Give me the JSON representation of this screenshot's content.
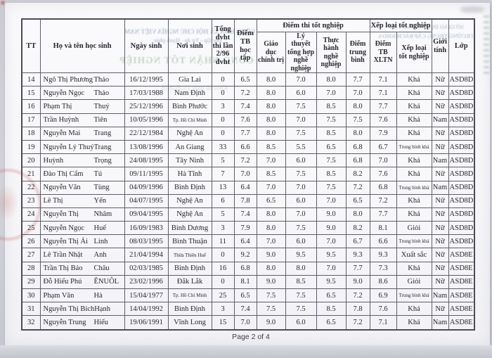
{
  "page": {
    "footer": "Page 2 of 4"
  },
  "colors": {
    "ink": "#26262e",
    "table_line": "#5e5e68",
    "paper": "#f8f8fb",
    "scanner_background": "#d2d3da",
    "stamp_red": "#c1493e",
    "bleed_blue": "#6a8ca6",
    "bleed_green": "#80a876"
  },
  "bleedthrough": {
    "line1": "CỘNG HÒA XÃ HỘI CHỦ NGHĨA VIỆT NAM",
    "line2": "Độc lập - Tự do - Hạnh phúc",
    "line3": "CÔNG NHẬN TỐT NGHIỆP",
    "line4": "SỞ GIÁO DỤC VÀ ĐÀO TẠO",
    "line5": "TRƯỜNG TRUNG CẤP BÁCH KHOA",
    "line6": "Khóa thi ngày 15/26/2016"
  },
  "table": {
    "headers": {
      "tt": "TT",
      "name": "Họ và tên học sinh",
      "dob": "Ngày sinh",
      "pob": "Nơi sinh",
      "credits": "Tổng đvht thi lần 2/96 đvht",
      "gpa": "Điểm TB học tập",
      "exam_group": "Điểm thi tốt nghiệp",
      "exam_politics": "Giáo dục chính trị",
      "exam_theory": "Lý thuyết tổng hợp nghề nghiệp",
      "exam_practice": "Thực hành nghề nghiệp",
      "exam_avg": "Điểm trung bình",
      "rank_group": "Xếp loại tốt nghiệp",
      "rank_avg": "Điểm TB XLTN",
      "rank_label": "Xếp loại tốt nghiệp",
      "gender": "Giới tính",
      "class": "Lớp"
    },
    "rows": [
      [
        "14",
        "Ngô Thị Phương",
        "Thảo",
        "16/12/1995",
        "Gia Lai",
        "0",
        "6.5",
        "8.0",
        "7.0",
        "8.0",
        "7.7",
        "7.1",
        "Khá",
        "Nữ",
        "ASD8D"
      ],
      [
        "15",
        "Nguyễn Ngọc",
        "Thảo",
        "17/03/1988",
        "Nam Định",
        "0",
        "7.2",
        "8.0",
        "6.0",
        "7.0",
        "7.0",
        "7.1",
        "Khá",
        "Nữ",
        "ASD8D"
      ],
      [
        "16",
        "Phạm Thị",
        "Thuý",
        "25/12/1996",
        "Bình Phước",
        "3",
        "7.4",
        "8.0",
        "7.5",
        "8.5",
        "8.0",
        "7.7",
        "Khá",
        "Nữ",
        "ASD8D"
      ],
      [
        "17",
        "Trần Huỳnh",
        "Tiên",
        "10/05/1996",
        "Tp. Hồ Chí Minh",
        "0",
        "7.6",
        "8.0",
        "7.0",
        "7.5",
        "7.5",
        "7.6",
        "Khá",
        "Nam",
        "ASD8D"
      ],
      [
        "18",
        "Nguyễn Mai",
        "Trang",
        "22/12/1984",
        "Nghệ An",
        "0",
        "7.7",
        "8.0",
        "7.5",
        "8.5",
        "8.0",
        "7.9",
        "Khá",
        "Nữ",
        "ASD8D"
      ],
      [
        "19",
        "Nguyễn Lý Thuỷ",
        "Trang",
        "13/08/1996",
        "An Giang",
        "33",
        "6.6",
        "8.5",
        "5.5",
        "6.5",
        "6.8",
        "6.7",
        "Trung bình khá",
        "Nữ",
        "ASD8D"
      ],
      [
        "20",
        "Huỳnh",
        "Trọng",
        "24/08/1995",
        "Tây Ninh",
        "5",
        "7.2",
        "7.0",
        "6.0",
        "7.5",
        "6.8",
        "7.0",
        "Khá",
        "Nam",
        "ASD8D"
      ],
      [
        "21",
        "Đào Thị Cẩm",
        "Tú",
        "09/11/1995",
        "Hà Tĩnh",
        "7",
        "7.0",
        "8.5",
        "7.5",
        "8.5",
        "8.2",
        "7.6",
        "Khá",
        "Nữ",
        "ASD8D"
      ],
      [
        "22",
        "Nguyễn Văn",
        "Tùng",
        "04/09/1996",
        "Bình Định",
        "13",
        "6.4",
        "7.0",
        "7.0",
        "7.5",
        "7.2",
        "6.8",
        "Trung bình khá",
        "Nam",
        "ASD8D"
      ],
      [
        "23",
        "Lê Thị",
        "Yến",
        "04/07/1995",
        "Nghệ An",
        "6",
        "7.8",
        "6.5",
        "6.0",
        "7.0",
        "6.5",
        "7.2",
        "Khá",
        "Nữ",
        "ASD8D"
      ],
      [
        "24",
        "Nguyễn Thị",
        "Nhâm",
        "09/04/1995",
        "Nghệ An",
        "5",
        "7.4",
        "8.0",
        "7.0",
        "9.0",
        "8.0",
        "7.7",
        "Khá",
        "Nữ",
        "ASD8D"
      ],
      [
        "25",
        "Nguyễn Ngọc",
        "Huế",
        "16/09/1983",
        "Bình Dương",
        "3",
        "7.9",
        "8.0",
        "7.5",
        "9.0",
        "8.2",
        "8.1",
        "Giỏi",
        "Nữ",
        "ASD8D"
      ],
      [
        "26",
        "Nguyễn Thị Ái",
        "Linh",
        "08/03/1995",
        "Bình Thuận",
        "11",
        "6.4",
        "7.0",
        "6.0",
        "7.0",
        "6.7",
        "6.6",
        "Trung bình khá",
        "Nữ",
        "ASD8D"
      ],
      [
        "27",
        "Lê Trần Nhật",
        "Anh",
        "21/04/1994",
        "Thừa Thiên Huế",
        "0",
        "9.2",
        "9.0",
        "9.5",
        "9.5",
        "9.3",
        "9.3",
        "Xuất sắc",
        "Nữ",
        "ASD8E"
      ],
      [
        "28",
        "Trần Thị Bảo",
        "Châu",
        "02/03/1985",
        "Bình Định",
        "16",
        "6.8",
        "8.0",
        "8.0",
        "7.0",
        "7.7",
        "7.3",
        "Khá",
        "Nữ",
        "ASD8E"
      ],
      [
        "29",
        "Đỗ Hiếu Phú",
        "ÊNUÔL",
        "23/02/1996",
        "Đắk Lắk",
        "0",
        "8.1",
        "9.0",
        "8.5",
        "9.5",
        "9.0",
        "8.6",
        "Giỏi",
        "Nữ",
        "ASD8E"
      ],
      [
        "30",
        "Phạm Văn",
        "Hà",
        "15/04/1977",
        "Tp. Hồ Chí Minh",
        "25",
        "6.5",
        "7.5",
        "7.5",
        "6.5",
        "7.2",
        "6.9",
        "Trung bình khá",
        "Nam",
        "ASD8E"
      ],
      [
        "31",
        "Nguyễn Thị Bích",
        "Hạnh",
        "14/04/1992",
        "Bình Định",
        "3",
        "7.4",
        "7.5",
        "7.5",
        "8.5",
        "7.8",
        "7.6",
        "Khá",
        "Nữ",
        "ASD8E"
      ],
      [
        "32",
        "Nguyễn Trung",
        "Hiếu",
        "19/06/1991",
        "Vĩnh Long",
        "15",
        "7.0",
        "9.0",
        "6.0",
        "6.5",
        "7.2",
        "7.1",
        "Khá",
        "Nam",
        "ASD8E"
      ]
    ]
  }
}
